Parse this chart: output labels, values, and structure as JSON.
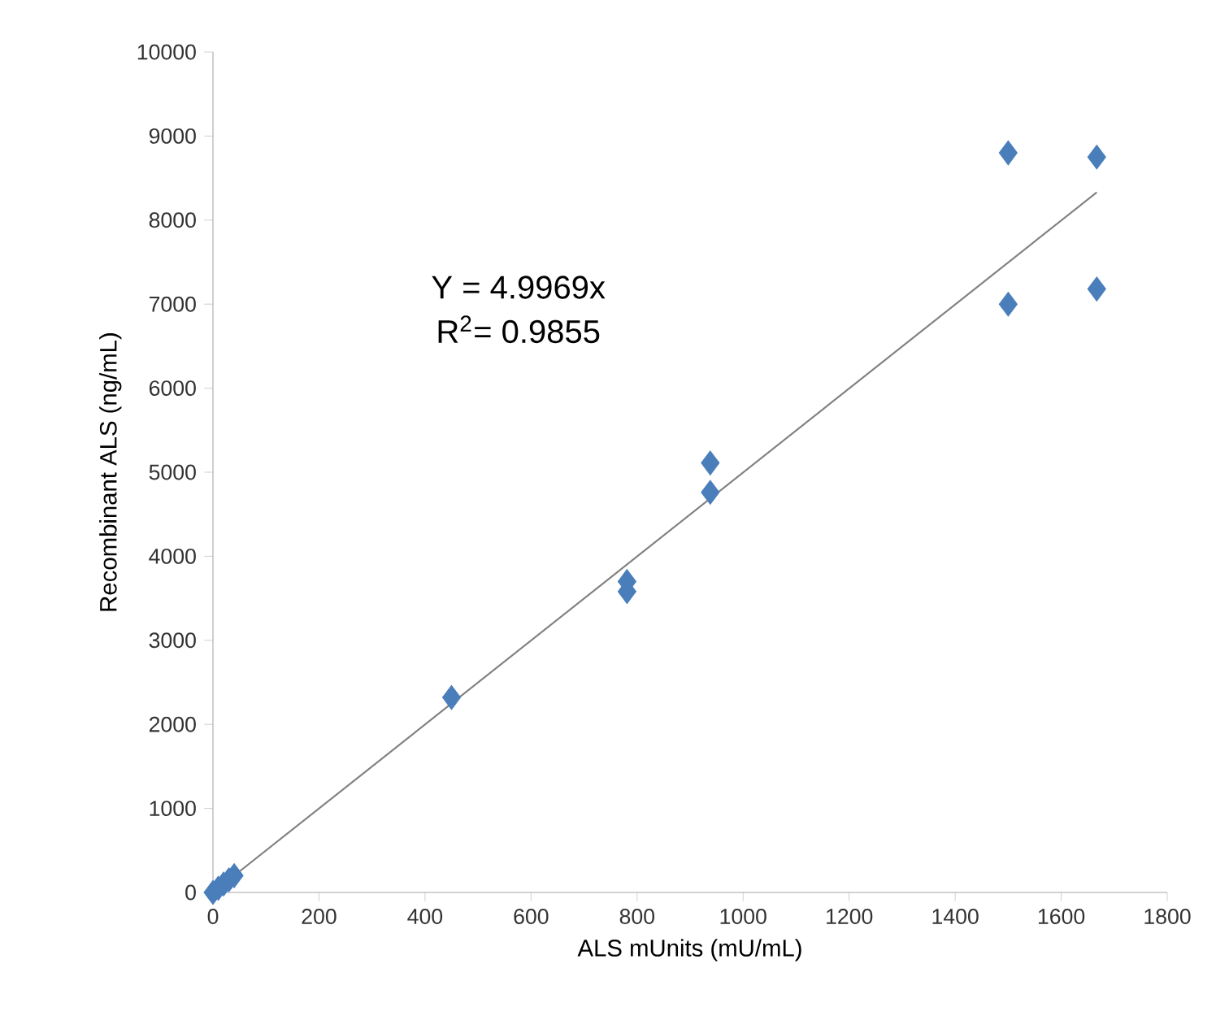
{
  "chart_data": {
    "type": "scatter",
    "xlabel": "ALS mUnits (mU/mL)",
    "ylabel": "Recombinant ALS (ng/mL)",
    "xlim": [
      0,
      1800
    ],
    "xticks": [
      0,
      200,
      400,
      600,
      800,
      1000,
      1200,
      1400,
      1600,
      1800
    ],
    "ylim": [
      0,
      10000
    ],
    "yticks": [
      0,
      1000,
      2000,
      3000,
      4000,
      5000,
      6000,
      7000,
      8000,
      9000,
      10000
    ],
    "grid": false,
    "series": [
      {
        "marker": "diamond",
        "color": "#4a7ebb",
        "x": [
          0,
          10,
          20,
          30,
          40,
          450,
          781,
          781,
          938,
          938,
          1500,
          1500,
          1667,
          1667
        ],
        "values": [
          0,
          50,
          100,
          150,
          200,
          2320,
          3700,
          3580,
          5110,
          4760,
          8800,
          7000,
          8750,
          7180
        ]
      },
      {
        "type": "line",
        "color": "#808080",
        "x": [
          0,
          1667
        ],
        "values": [
          0,
          8330
        ]
      }
    ],
    "annotations": [
      "Y = 4.9969x",
      "R$^{2}$= 0.9855"
    ]
  }
}
